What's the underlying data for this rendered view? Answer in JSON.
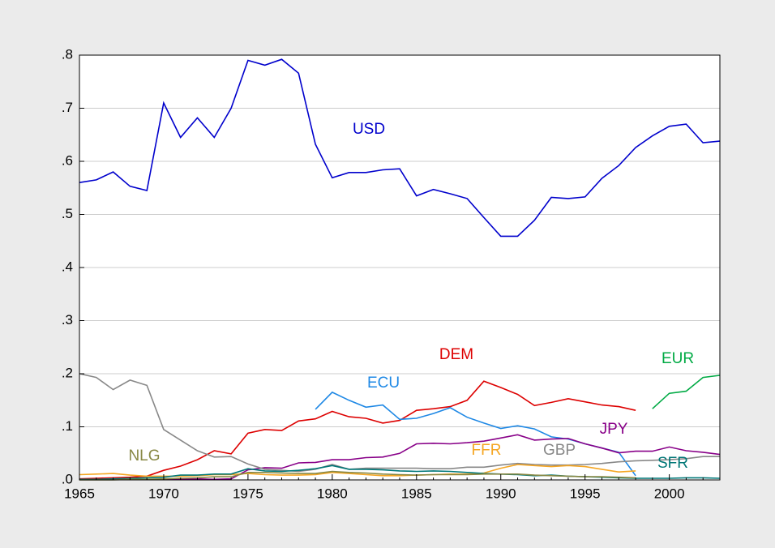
{
  "chart_data": {
    "type": "line",
    "x": [
      1965,
      1966,
      1967,
      1968,
      1969,
      1970,
      1971,
      1972,
      1973,
      1974,
      1975,
      1976,
      1977,
      1978,
      1979,
      1980,
      1981,
      1982,
      1983,
      1984,
      1985,
      1986,
      1987,
      1988,
      1989,
      1990,
      1991,
      1992,
      1993,
      1994,
      1995,
      1996,
      1997,
      1998,
      1999,
      2000,
      2001,
      2002,
      2003
    ],
    "xlim": [
      1965,
      2003
    ],
    "xticks": [
      1965,
      1970,
      1975,
      1980,
      1985,
      1990,
      1995,
      2000
    ],
    "ylim": [
      0,
      0.8
    ],
    "yticks": [
      {
        "value": 0,
        "label": ".0"
      },
      {
        "value": 0.1,
        "label": ".1"
      },
      {
        "value": 0.2,
        "label": ".2"
      },
      {
        "value": 0.3,
        "label": ".3"
      },
      {
        "value": 0.4,
        "label": ".4"
      },
      {
        "value": 0.5,
        "label": ".5"
      },
      {
        "value": 0.6,
        "label": ".6"
      },
      {
        "value": 0.7,
        "label": ".7"
      },
      {
        "value": 0.8,
        "label": ".8"
      }
    ],
    "grid": true,
    "series": [
      {
        "name": "USD",
        "color": "#0000cc",
        "values": [
          0.56,
          0.565,
          0.58,
          0.553,
          0.545,
          0.71,
          0.645,
          0.682,
          0.645,
          0.7,
          0.79,
          0.781,
          0.792,
          0.766,
          0.632,
          0.569,
          0.579,
          0.579,
          0.584,
          0.586,
          0.535,
          0.547,
          0.539,
          0.53,
          0.494,
          0.459,
          0.459,
          0.489,
          0.532,
          0.53,
          0.533,
          0.568,
          0.592,
          0.626,
          0.648,
          0.666,
          0.67,
          0.635,
          0.638
        ]
      },
      {
        "name": "DEM",
        "color": "#dd0000",
        "values": [
          0.002,
          0.003,
          0.004,
          0.005,
          0.007,
          0.018,
          0.026,
          0.038,
          0.055,
          0.049,
          0.088,
          0.095,
          0.093,
          0.111,
          0.115,
          0.129,
          0.119,
          0.116,
          0.107,
          0.112,
          0.131,
          0.134,
          0.138,
          0.15,
          0.186,
          0.174,
          0.161,
          0.14,
          0.146,
          0.153,
          0.147,
          0.141,
          0.138,
          0.131,
          null,
          null,
          null,
          null,
          null
        ]
      },
      {
        "name": "ECU",
        "color": "#1e88e5",
        "values": [
          null,
          null,
          null,
          null,
          null,
          null,
          null,
          null,
          null,
          null,
          null,
          null,
          null,
          null,
          0.133,
          0.165,
          0.15,
          0.137,
          0.141,
          0.114,
          0.116,
          0.125,
          0.136,
          0.118,
          0.107,
          0.097,
          0.102,
          0.096,
          0.081,
          0.077,
          0.068,
          0.06,
          0.052,
          0.008,
          null,
          null,
          null,
          null,
          null
        ]
      },
      {
        "name": "EUR",
        "color": "#00aa44",
        "values": [
          null,
          null,
          null,
          null,
          null,
          null,
          null,
          null,
          null,
          null,
          null,
          null,
          null,
          null,
          null,
          null,
          null,
          null,
          null,
          null,
          null,
          null,
          null,
          null,
          null,
          null,
          null,
          null,
          null,
          null,
          null,
          null,
          null,
          null,
          0.134,
          0.163,
          0.167,
          0.193,
          0.197
        ]
      },
      {
        "name": "JPY",
        "color": "#880088",
        "values": [
          null,
          null,
          null,
          null,
          null,
          0.001,
          0.002,
          0.002,
          0.001,
          0.002,
          0.019,
          0.023,
          0.022,
          0.032,
          0.033,
          0.038,
          0.038,
          0.042,
          0.043,
          0.05,
          0.068,
          0.069,
          0.068,
          0.07,
          0.073,
          0.079,
          0.085,
          0.075,
          0.077,
          0.078,
          0.068,
          0.06,
          0.051,
          0.054,
          0.054,
          0.062,
          0.055,
          0.052,
          0.048
        ]
      },
      {
        "name": "GBP",
        "color": "#888888",
        "values": [
          0.2,
          0.193,
          0.17,
          0.188,
          0.178,
          0.095,
          0.075,
          0.055,
          0.043,
          0.044,
          0.03,
          0.02,
          0.018,
          0.016,
          0.02,
          0.029,
          0.02,
          0.022,
          0.022,
          0.022,
          0.022,
          0.021,
          0.021,
          0.024,
          0.024,
          0.028,
          0.031,
          0.029,
          0.028,
          0.028,
          0.029,
          0.031,
          0.034,
          0.036,
          0.037,
          0.038,
          0.04,
          0.044,
          0.044
        ]
      },
      {
        "name": "FFR",
        "color": "#f5a623",
        "values": [
          0.01,
          0.011,
          0.012,
          0.009,
          0.007,
          0.007,
          0.007,
          0.008,
          0.01,
          0.01,
          0.012,
          0.01,
          0.009,
          0.009,
          0.01,
          0.014,
          0.012,
          0.01,
          0.008,
          0.008,
          0.009,
          0.01,
          0.011,
          0.011,
          0.013,
          0.022,
          0.029,
          0.027,
          0.025,
          0.027,
          0.025,
          0.02,
          0.015,
          0.017,
          null,
          null,
          null,
          null,
          null
        ]
      },
      {
        "name": "SFR",
        "color": "#007777",
        "values": [
          0.001,
          0.001,
          0.002,
          0.003,
          0.004,
          0.005,
          0.009,
          0.009,
          0.011,
          0.011,
          0.021,
          0.017,
          0.016,
          0.018,
          0.021,
          0.027,
          0.02,
          0.02,
          0.019,
          0.017,
          0.016,
          0.017,
          0.016,
          0.014,
          0.012,
          0.011,
          0.01,
          0.008,
          0.009,
          0.007,
          0.006,
          0.005,
          0.004,
          0.003,
          0.003,
          0.003,
          0.004,
          0.004,
          0.003
        ]
      },
      {
        "name": "NLG",
        "color": "#888844",
        "values": [
          0.0,
          0.0,
          0.0,
          0.001,
          0.001,
          0.002,
          0.003,
          0.004,
          0.006,
          0.006,
          0.014,
          0.014,
          0.013,
          0.012,
          0.012,
          0.016,
          0.014,
          0.013,
          0.011,
          0.01,
          0.009,
          0.01,
          0.01,
          0.01,
          0.011,
          0.011,
          0.011,
          0.009,
          0.008,
          0.007,
          0.006,
          0.006,
          0.005,
          0.004,
          null,
          null,
          null,
          null,
          null
        ]
      }
    ]
  }
}
